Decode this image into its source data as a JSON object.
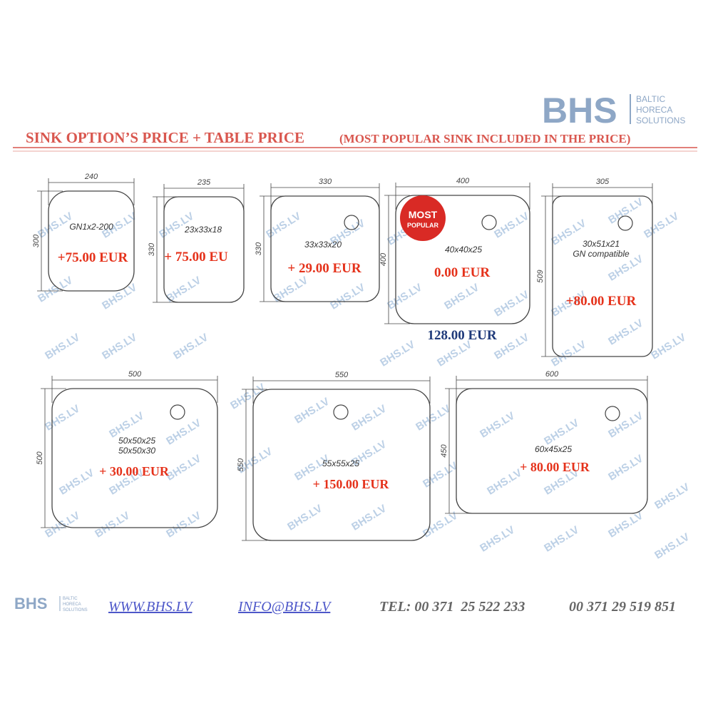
{
  "logo": {
    "name": "BHS",
    "tagline": [
      "BALTIC",
      "HORECA",
      "SOLUTIONS"
    ]
  },
  "title": "SINK OPTION’S PRICE + TABLE PRICE",
  "subtitle": "(MOST POPULAR SINK INCLUDED IN THE PRICE)",
  "watermark": "BHS.LV",
  "sinks": [
    {
      "width": 240,
      "height": 300,
      "labels": [
        "GN1x2-200"
      ],
      "price": "+75.00 EUR"
    },
    {
      "width": 235,
      "height": 330,
      "labels": [
        "23x33x18"
      ],
      "price": "+ 75.00 EU"
    },
    {
      "width": 330,
      "height": 330,
      "labels": [
        "33x33x20"
      ],
      "price": "+ 29.00 EUR"
    },
    {
      "width": 400,
      "height": 400,
      "labels": [
        "40x40x25"
      ],
      "price": "0.00 EUR"
    },
    {
      "width": 305,
      "height": 509,
      "labels": [
        "30x51x21",
        "GN compatible"
      ],
      "price": "+80.00 EUR"
    },
    {
      "width": 500,
      "height": 500,
      "labels": [
        "50x50x25",
        "50x50x30"
      ],
      "price": "+ 30.00 EUR"
    },
    {
      "width": 550,
      "height": 550,
      "labels": [
        "55x55x25"
      ],
      "price": "+ 150.00 EUR"
    },
    {
      "width": 600,
      "height": 450,
      "labels": [
        "60x45x25"
      ],
      "price": "+ 80.00 EUR"
    }
  ],
  "badge": [
    "MOST",
    "POPULAR"
  ],
  "table_price": "128.00 EUR",
  "footer": {
    "website": "WWW.BHS.LV",
    "email": "INFO@BHS.LV",
    "phones": [
      "TEL: 00 371  25 522 233",
      "00 371 29 519 851"
    ]
  }
}
